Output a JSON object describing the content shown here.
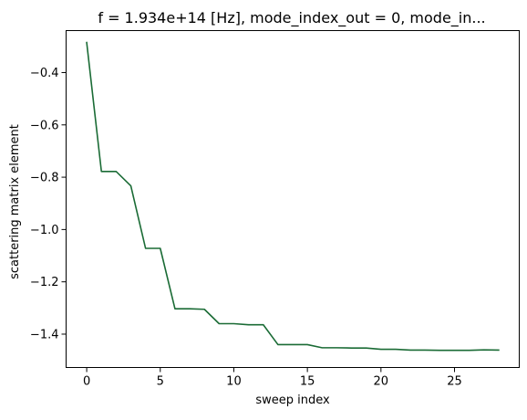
{
  "chart_data": {
    "type": "line",
    "title": "f = 1.934e+14 [Hz], mode_index_out = 0, mode_in...",
    "xlabel": "sweep index",
    "ylabel": "scattering matrix element",
    "xlim": [
      -1.4,
      29.4
    ],
    "ylim": [
      -1.5275,
      -0.2395
    ],
    "xticks": [
      0,
      5,
      10,
      15,
      20,
      25
    ],
    "xtick_labels": [
      "0",
      "5",
      "10",
      "15",
      "20",
      "25"
    ],
    "yticks": [
      -0.4,
      -0.6,
      -0.8,
      -1.0,
      -1.2,
      -1.4
    ],
    "ytick_labels": [
      "−0.4",
      "−0.6",
      "−0.8",
      "−1.0",
      "−1.2",
      "−1.4"
    ],
    "grid": false,
    "series": [
      {
        "color": "#1a6b35",
        "x": [
          0,
          1,
          2,
          3,
          4,
          5,
          6,
          7,
          8,
          9,
          10,
          11,
          12,
          13,
          14,
          15,
          16,
          17,
          18,
          19,
          20,
          21,
          22,
          23,
          24,
          25,
          26,
          27,
          28
        ],
        "values": [
          -0.285,
          -0.778,
          -0.778,
          -0.833,
          -1.072,
          -1.072,
          -1.303,
          -1.303,
          -1.305,
          -1.36,
          -1.36,
          -1.364,
          -1.364,
          -1.44,
          -1.44,
          -1.44,
          -1.452,
          -1.452,
          -1.453,
          -1.453,
          -1.458,
          -1.458,
          -1.461,
          -1.461,
          -1.462,
          -1.462,
          -1.462,
          -1.46,
          -1.461
        ]
      }
    ]
  }
}
